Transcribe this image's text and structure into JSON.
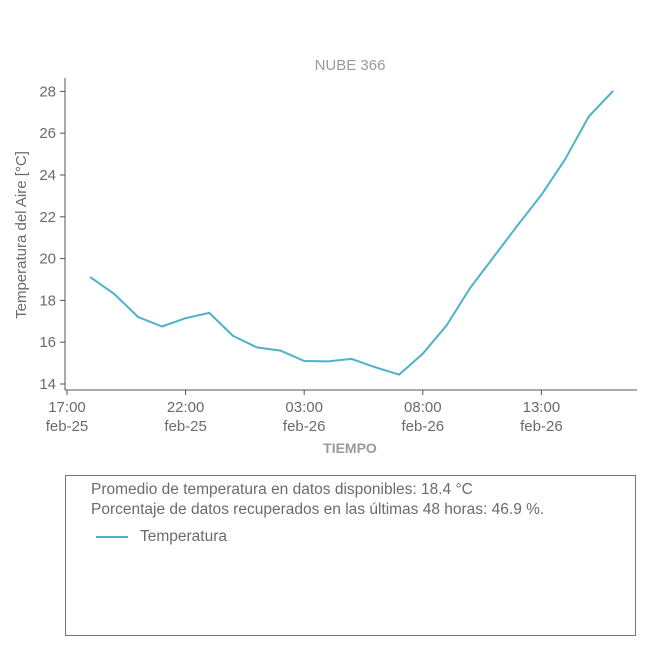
{
  "colors": {
    "series": "#4db3c5",
    "axis": "#555555",
    "text": "#6b6b6b",
    "title": "#9a9a9a"
  },
  "chart_data": {
    "type": "line",
    "title": "NUBE 366",
    "xlabel": "TIEMPO",
    "ylabel": "Temperatura del Aire [°C]",
    "x_unit": "hour",
    "x_start": "2025-02-25 17:00",
    "x_ticks": [
      {
        "time": "17:00",
        "date": "feb-25"
      },
      {
        "time": "22:00",
        "date": "feb-25"
      },
      {
        "time": "03:00",
        "date": "feb-26"
      },
      {
        "time": "08:00",
        "date": "feb-26"
      },
      {
        "time": "13:00",
        "date": "feb-26"
      }
    ],
    "y_ticks": [
      14,
      16,
      18,
      20,
      22,
      24,
      26,
      28
    ],
    "ylim": [
      13.7,
      28.7
    ],
    "grid": false,
    "series": [
      {
        "name": "Temperatura",
        "points": [
          [
            "2025-02-25 18:00",
            19.1
          ],
          [
            "2025-02-25 19:00",
            18.3
          ],
          [
            "2025-02-25 20:00",
            17.2
          ],
          [
            "2025-02-25 21:00",
            16.75
          ],
          [
            "2025-02-25 22:00",
            17.15
          ],
          [
            "2025-02-25 23:00",
            17.4
          ],
          [
            "2025-02-26 00:00",
            16.3
          ],
          [
            "2025-02-26 01:00",
            15.75
          ],
          [
            "2025-02-26 02:00",
            15.6
          ],
          [
            "2025-02-26 03:00",
            15.1
          ],
          [
            "2025-02-26 04:00",
            15.08
          ],
          [
            "2025-02-26 05:00",
            15.2
          ],
          [
            "2025-02-26 06:00",
            14.8
          ],
          [
            "2025-02-26 07:00",
            14.45
          ],
          [
            "2025-02-26 08:00",
            15.45
          ],
          [
            "2025-02-26 09:00",
            16.8
          ],
          [
            "2025-02-26 10:00",
            18.6
          ],
          [
            "2025-02-26 11:00",
            20.1
          ],
          [
            "2025-02-26 12:00",
            21.6
          ],
          [
            "2025-02-26 13:00",
            23.05
          ],
          [
            "2025-02-26 14:00",
            24.75
          ],
          [
            "2025-02-26 15:00",
            26.8
          ],
          [
            "2025-02-26 16:00",
            28.0
          ]
        ]
      }
    ]
  },
  "info": {
    "avg_text": "Promedio de temperatura en datos disponibles: 18.4 °C",
    "pct_text": "Porcentaje de datos recuperados en las últimas 48 horas: 46.9 %.",
    "legend_label": "Temperatura"
  }
}
